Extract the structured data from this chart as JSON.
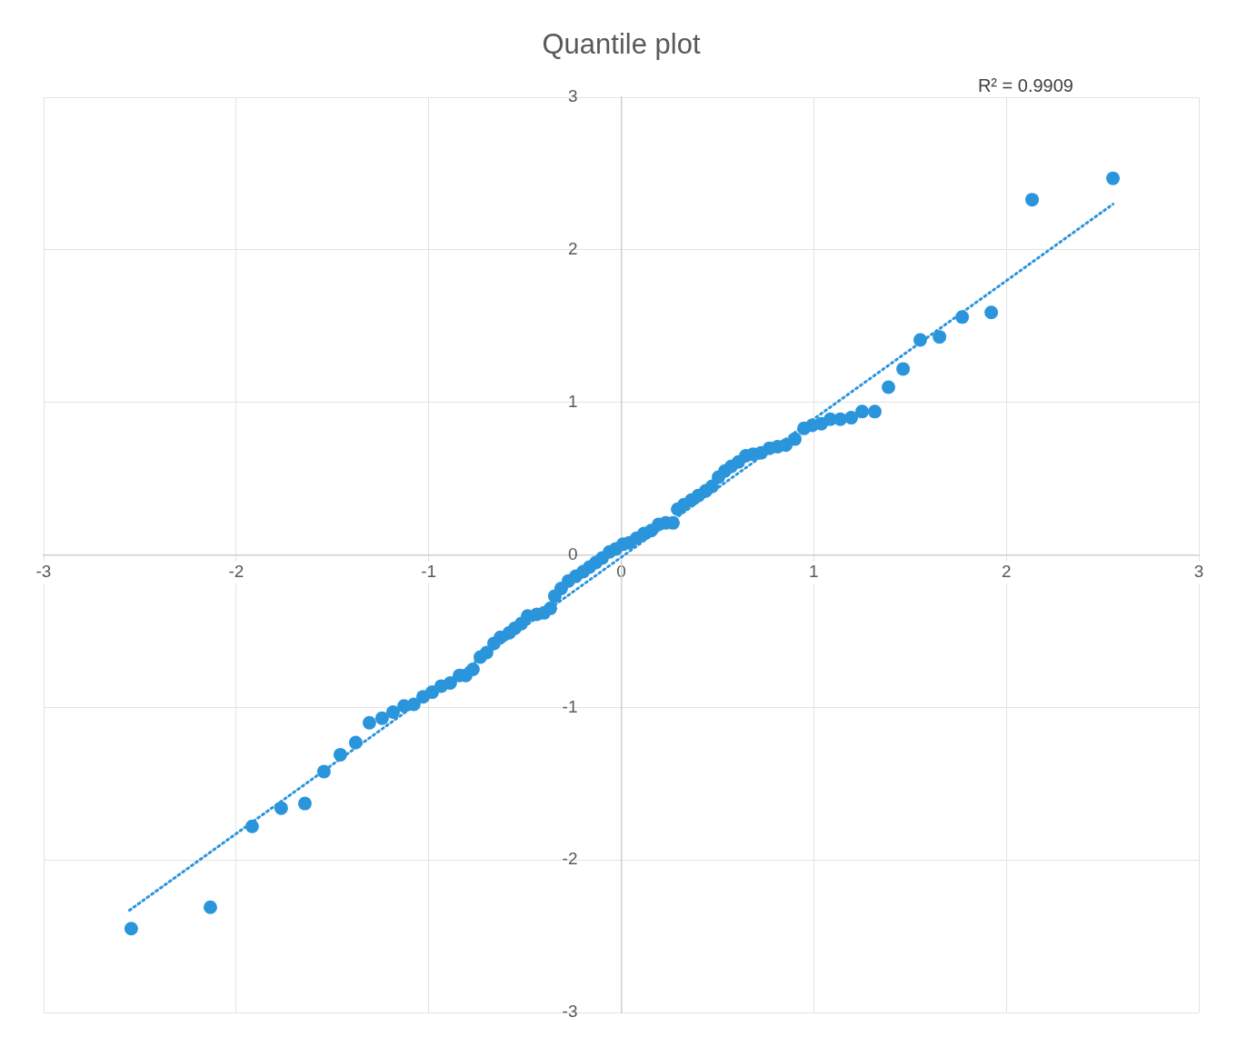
{
  "chart_data": {
    "type": "scatter",
    "title": "Quantile plot",
    "annotations": [
      "R² = 0.9909"
    ],
    "xlim": [
      -3,
      3
    ],
    "xticks": [
      -3,
      -2,
      -1,
      0,
      1,
      2,
      3
    ],
    "ylim": [
      -3,
      3
    ],
    "yticks": [
      -3,
      -2,
      -1,
      0,
      1,
      2,
      3
    ],
    "grid": true,
    "legend": false,
    "marker": "circle",
    "series": [
      {
        "color": "#2b95dc",
        "x": [
          -2.545,
          -2.134,
          -1.917,
          -1.766,
          -1.643,
          -1.544,
          -1.459,
          -1.379,
          -1.308,
          -1.242,
          -1.185,
          -1.128,
          -1.077,
          -1.029,
          -0.982,
          -0.935,
          -0.888,
          -0.84,
          -0.807,
          -0.77,
          -0.732,
          -0.699,
          -0.661,
          -0.628,
          -0.581,
          -0.552,
          -0.519,
          -0.486,
          -0.439,
          -0.401,
          -0.368,
          -0.345,
          -0.312,
          -0.274,
          -0.236,
          -0.198,
          -0.165,
          -0.132,
          -0.099,
          -0.061,
          -0.028,
          0.009,
          0.042,
          0.08,
          0.118,
          0.156,
          0.194,
          0.231,
          0.269,
          0.293,
          0.326,
          0.364,
          0.401,
          0.439,
          0.472,
          0.505,
          0.538,
          0.571,
          0.609,
          0.647,
          0.685,
          0.727,
          0.77,
          0.812,
          0.855,
          0.902,
          0.949,
          0.992,
          1.039,
          1.086,
          1.138,
          1.195,
          1.251,
          1.317,
          1.388,
          1.464,
          1.553,
          1.653,
          1.771,
          1.922,
          2.134,
          2.554
        ],
        "values": [
          -2.45,
          -2.31,
          -1.78,
          -1.66,
          -1.63,
          -1.42,
          -1.31,
          -1.23,
          -1.1,
          -1.07,
          -1.03,
          -0.99,
          -0.98,
          -0.93,
          -0.9,
          -0.86,
          -0.84,
          -0.79,
          -0.79,
          -0.75,
          -0.67,
          -0.64,
          -0.58,
          -0.54,
          -0.51,
          -0.48,
          -0.45,
          -0.4,
          -0.39,
          -0.38,
          -0.35,
          -0.27,
          -0.22,
          -0.17,
          -0.14,
          -0.11,
          -0.08,
          -0.05,
          -0.02,
          0.02,
          0.04,
          0.07,
          0.08,
          0.11,
          0.14,
          0.16,
          0.2,
          0.21,
          0.21,
          0.3,
          0.33,
          0.36,
          0.39,
          0.42,
          0.45,
          0.51,
          0.55,
          0.58,
          0.61,
          0.65,
          0.66,
          0.67,
          0.7,
          0.71,
          0.72,
          0.76,
          0.83,
          0.85,
          0.86,
          0.89,
          0.89,
          0.9,
          0.94,
          0.94,
          1.1,
          1.22,
          1.41,
          1.43,
          1.56,
          1.59,
          2.33,
          2.47
        ]
      },
      {
        "type": "line",
        "line_style": "dotted",
        "marker": "none",
        "color": "#2b95dc",
        "x": [
          -2.554,
          2.554
        ],
        "values": [
          -2.33,
          2.3
        ]
      }
    ]
  }
}
